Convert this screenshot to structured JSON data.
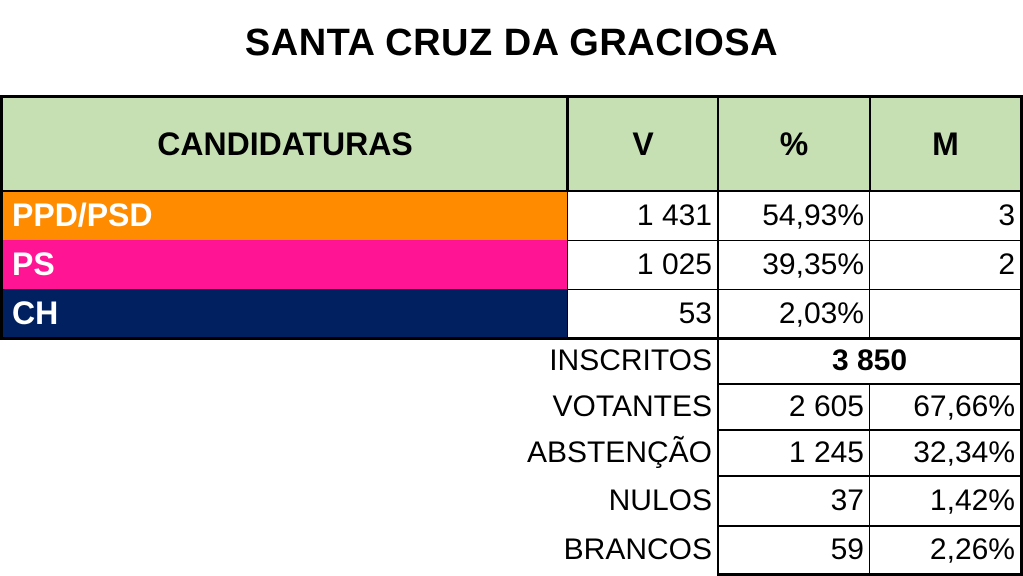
{
  "title": "SANTA CRUZ DA GRACIOSA",
  "colors": {
    "header_bg": "#c6e0b4",
    "PPD/PSD": "#ff8c00",
    "PS": "#ff1493",
    "CH": "#002060"
  },
  "chart_data": {
    "type": "table",
    "title": "SANTA CRUZ DA GRACIOSA",
    "columns": [
      "CANDIDATURAS",
      "V",
      "%",
      "M"
    ],
    "rows": [
      {
        "party": "PPD/PSD",
        "votes": "1 431",
        "percent": "54,93%",
        "mandates": "3"
      },
      {
        "party": "PS",
        "votes": "1 025",
        "percent": "39,35%",
        "mandates": "2"
      },
      {
        "party": "CH",
        "votes": "53",
        "percent": "2,03%",
        "mandates": ""
      }
    ],
    "summary": {
      "inscritos": {
        "label": "INSCRITOS",
        "value": "3 850"
      },
      "votantes": {
        "label": "VOTANTES",
        "value": "2 605",
        "percent": "67,66%"
      },
      "abstencao": {
        "label": "ABSTENÇÃO",
        "value": "1 245",
        "percent": "32,34%"
      },
      "nulos": {
        "label": "NULOS",
        "value": "37",
        "percent": "1,42%"
      },
      "brancos": {
        "label": "BRANCOS",
        "value": "59",
        "percent": "2,26%"
      }
    }
  }
}
